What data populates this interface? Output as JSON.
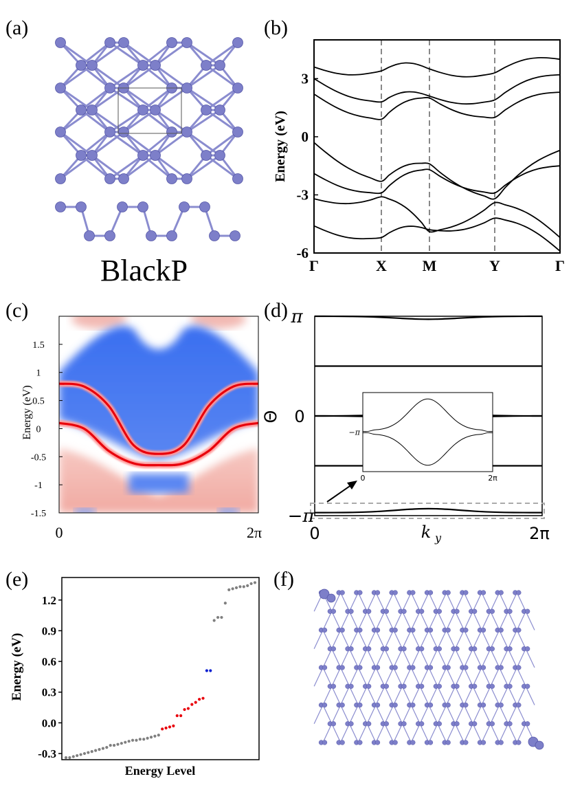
{
  "panels": {
    "a": {
      "label": "(a)",
      "title": "BlackP"
    },
    "b": {
      "label": "(b)"
    },
    "c": {
      "label": "(c)"
    },
    "d": {
      "label": "(d)"
    },
    "e": {
      "label": "(e)"
    },
    "f": {
      "label": "(f)"
    }
  },
  "colors": {
    "atom": "#7d7fc9",
    "atom_dark": "#5557a8",
    "bond": "#8a8ccf",
    "red": "#e8000b",
    "blue": "#0b1fd0",
    "gray": "#7f7f7f",
    "bulk_blue": "#3f6fe8",
    "bulk_red": "#f2b9b3"
  },
  "chart_data": [
    {
      "id": "b",
      "type": "line",
      "title": "",
      "ylabel": "Energy (eV)",
      "xlabel": "",
      "ylim": [
        -6,
        5
      ],
      "yticks": [
        "3",
        "0",
        "-3",
        "-6"
      ],
      "xticks": [
        "Γ",
        "X",
        "M",
        "Y",
        "Γ"
      ],
      "series": [
        {
          "name": "conduction band 1",
          "values": [
            2.2,
            0.9,
            2.0,
            1.0,
            2.3
          ]
        },
        {
          "name": "conduction band 2",
          "values": [
            3.0,
            1.8,
            2.1,
            1.9,
            3.2
          ]
        },
        {
          "name": "conduction band 3",
          "values": [
            3.6,
            3.4,
            3.5,
            3.3,
            4.0
          ]
        },
        {
          "name": "valence band 1",
          "values": [
            -0.3,
            -2.3,
            -1.4,
            -3.2,
            -0.7
          ]
        },
        {
          "name": "valence band 2",
          "values": [
            -1.9,
            -2.9,
            -1.7,
            -2.9,
            -1.5
          ]
        },
        {
          "name": "valence band 3",
          "values": [
            -3.2,
            -3.1,
            -4.9,
            -3.4,
            -5.2
          ]
        },
        {
          "name": "valence band 4",
          "values": [
            -4.6,
            -5.2,
            -4.8,
            -4.2,
            -5.9
          ]
        }
      ]
    },
    {
      "id": "c",
      "type": "heatmap",
      "ylabel": "Energy (eV)",
      "ylim": [
        -1.5,
        2
      ],
      "yticks": [
        "1.5",
        "1",
        "0.5",
        "0",
        "-0.5",
        "-1",
        "-1.5"
      ],
      "xticks": [
        "0",
        "2π"
      ],
      "series": [
        {
          "name": "edge state upper",
          "values": [
            0.8,
            0.75,
            0.4,
            -0.3,
            -0.45,
            -0.3,
            0.4,
            0.75,
            0.8
          ]
        },
        {
          "name": "edge state lower",
          "values": [
            0.1,
            0.0,
            -0.4,
            -0.62,
            -0.65,
            -0.62,
            -0.4,
            0.0,
            0.1
          ]
        }
      ]
    },
    {
      "id": "d",
      "type": "line",
      "ylabel": "Θ",
      "xlabel": "k_y",
      "ylim": [
        -1,
        1
      ],
      "yticks": [
        "π",
        "0",
        "−π"
      ],
      "xticks": [
        "0",
        "2π"
      ],
      "inset": {
        "ytick": "−π",
        "xticks": [
          "0",
          "2π"
        ]
      },
      "series": [
        {
          "name": "Wannier center near π",
          "values": [
            1.0,
            0.97,
            1.0
          ]
        },
        {
          "name": "Wannier center 0.5π",
          "values": [
            0.5,
            0.5,
            0.5
          ]
        },
        {
          "name": "Wannier center near 0 (upper)",
          "values": [
            0.0,
            0.04,
            0.0
          ]
        },
        {
          "name": "Wannier center near 0 (lower)",
          "values": [
            0.0,
            -0.04,
            0.0
          ]
        },
        {
          "name": "Wannier center −0.5π",
          "values": [
            -0.5,
            -0.5,
            -0.5
          ]
        },
        {
          "name": "Wannier center near −π",
          "values": [
            -0.97,
            -0.93,
            -0.97
          ]
        }
      ]
    },
    {
      "id": "e",
      "type": "scatter",
      "ylabel": "Energy (eV)",
      "xlabel": "Energy Level",
      "ylim": [
        -0.36,
        1.42
      ],
      "yticks": [
        "1.2",
        "0.9",
        "0.6",
        "0.3",
        "0.0",
        "-0.3"
      ],
      "series": [
        {
          "name": "bulk",
          "color": "gray",
          "values": [
            -0.34,
            -0.34,
            -0.33,
            -0.32,
            -0.31,
            -0.3,
            -0.29,
            -0.28,
            -0.27,
            -0.26,
            -0.25,
            -0.24,
            -0.22,
            -0.22,
            -0.21,
            -0.2,
            -0.19,
            -0.18,
            -0.17,
            -0.17,
            -0.16,
            -0.16,
            -0.15,
            -0.14,
            -0.13,
            -0.12
          ]
        },
        {
          "name": "edge",
          "color": "red",
          "values": [
            -0.06,
            -0.05,
            -0.04,
            -0.03,
            0.07,
            0.07,
            0.13,
            0.14,
            0.18,
            0.2,
            0.23,
            0.24
          ]
        },
        {
          "name": "corner",
          "color": "blue",
          "values": [
            0.51,
            0.51
          ]
        },
        {
          "name": "bulk upper",
          "color": "gray",
          "values": [
            1.0,
            1.03,
            1.03,
            1.17,
            1.3,
            1.31,
            1.32,
            1.33,
            1.33,
            1.34,
            1.36,
            1.37
          ]
        }
      ]
    }
  ]
}
